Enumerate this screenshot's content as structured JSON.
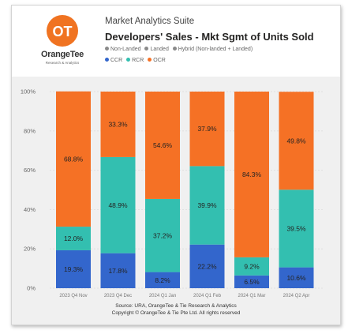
{
  "header": {
    "suite": "Market Analytics Suite",
    "title": "Developers' Sales - Mkt Sgmt of Units Sold"
  },
  "brand": {
    "logo_mark": "OT",
    "name_orange": "Orange",
    "name_tee": "Tee",
    "tagline": "Research & Analytics"
  },
  "legends": {
    "filters": [
      {
        "label": "Non-Landed",
        "color": "#8a8a8a"
      },
      {
        "label": "Landed",
        "color": "#8a8a8a"
      },
      {
        "label": "Hybrid (Non-landed + Landed)",
        "color": "#8a8a8a"
      }
    ],
    "series": [
      {
        "label": "CCR",
        "color": "#3366cc"
      },
      {
        "label": "RCR",
        "color": "#33bfb0"
      },
      {
        "label": "OCR",
        "color": "#f57125"
      }
    ]
  },
  "footer": {
    "source": "Source: URA, OrangeTee & Tie Research & Analytics",
    "copyright": "Copyright © OrangeTee & Tie Pte Ltd. All rights reserved"
  },
  "chart_data": {
    "type": "bar",
    "stacked": true,
    "categories": [
      "2023 Q4 Nov",
      "2023 Q4 Dec",
      "2024 Q1 Jan",
      "2024 Q1 Feb",
      "2024 Q1 Mar",
      "2024 Q2 Apr"
    ],
    "series": [
      {
        "name": "CCR",
        "color": "#3366cc",
        "values": [
          19.3,
          17.8,
          8.2,
          22.2,
          6.5,
          10.6
        ],
        "labels": [
          "19.3%",
          "17.8%",
          "8.2%",
          "22.2%",
          "6.5%",
          "10.6%"
        ]
      },
      {
        "name": "RCR",
        "color": "#33bfb0",
        "values": [
          12.0,
          48.9,
          37.2,
          39.9,
          9.2,
          39.5
        ],
        "labels": [
          "12.0%",
          "48.9%",
          "37.2%",
          "39.9%",
          "9.2%",
          "39.5%"
        ]
      },
      {
        "name": "OCR",
        "color": "#f57125",
        "values": [
          68.8,
          33.3,
          54.6,
          37.9,
          84.3,
          49.8
        ],
        "labels": [
          "68.8%",
          "33.3%",
          "54.6%",
          "37.9%",
          "84.3%",
          "49.8%"
        ]
      }
    ],
    "ylim": [
      0,
      100
    ],
    "yticks": [
      "0%",
      "20%",
      "40%",
      "60%",
      "80%",
      "100%"
    ],
    "grid": true,
    "legend_position": "top"
  }
}
